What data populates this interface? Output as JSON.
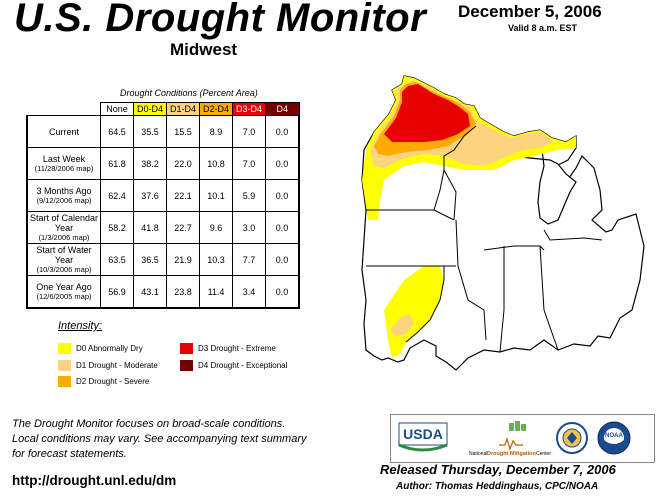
{
  "header": {
    "title": "U.S. Drought Monitor",
    "region": "Midwest",
    "date": "December 5, 2006",
    "valid": "Valid 8 a.m. EST"
  },
  "table": {
    "caption": "Drought Conditions (Percent Area)",
    "columns": [
      "None",
      "D0-D4",
      "D1-D4",
      "D2-D4",
      "D3-D4",
      "D4"
    ],
    "column_colors": [
      "#ffffff",
      "#ffff00",
      "#fcd37f",
      "#ffaa00",
      "#e60000",
      "#730000"
    ],
    "rows": [
      {
        "label": "Current",
        "sub": "",
        "values": [
          "64.5",
          "35.5",
          "15.5",
          "8.9",
          "7.0",
          "0.0"
        ]
      },
      {
        "label": "Last Week",
        "sub": "(11/28/2006 map)",
        "values": [
          "61.8",
          "38.2",
          "22.0",
          "10.8",
          "7.0",
          "0.0"
        ]
      },
      {
        "label": "3 Months Ago",
        "sub": "(9/12/2006 map)",
        "values": [
          "62.4",
          "37.6",
          "22.1",
          "10.1",
          "5.9",
          "0.0"
        ]
      },
      {
        "label": "Start of Calendar Year",
        "sub": "(1/3/2006 map)",
        "values": [
          "58.2",
          "41.8",
          "22.7",
          "9.6",
          "3.0",
          "0.0"
        ]
      },
      {
        "label": "Start of Water Year",
        "sub": "(10/3/2006 map)",
        "values": [
          "63.5",
          "36.5",
          "21.9",
          "10.3",
          "7.7",
          "0.0"
        ]
      },
      {
        "label": "One Year Ago",
        "sub": "(12/6/2005 map)",
        "values": [
          "56.9",
          "43.1",
          "23.8",
          "11.4",
          "3.4",
          "0.0"
        ]
      }
    ]
  },
  "legend": {
    "title": "Intensity:",
    "items": [
      {
        "label": "D0 Abnormally Dry",
        "color": "#ffff00"
      },
      {
        "label": "D1 Drought - Moderate",
        "color": "#fcd37f"
      },
      {
        "label": "D2 Drought - Severe",
        "color": "#ffaa00"
      },
      {
        "label": "D3 Drought - Extreme",
        "color": "#e60000"
      },
      {
        "label": "D4 Drought - Exceptional",
        "color": "#730000"
      }
    ]
  },
  "footer": {
    "note_lines": [
      "The Drought Monitor focuses on broad-scale conditions.",
      "Local conditions may vary. See accompanying text summary",
      "for forecast statements."
    ],
    "url": "http://drought.unl.edu/dm",
    "released": "Released Thursday, December 7, 2006",
    "author": "Author: Thomas Heddinghaus, CPC/NOAA"
  },
  "logos": {
    "usda": "USDA",
    "ndmc_prefix": "National",
    "ndmc_main": "Drought Mitigation",
    "ndmc_suffix": "Center",
    "noaa": "NOAA"
  }
}
